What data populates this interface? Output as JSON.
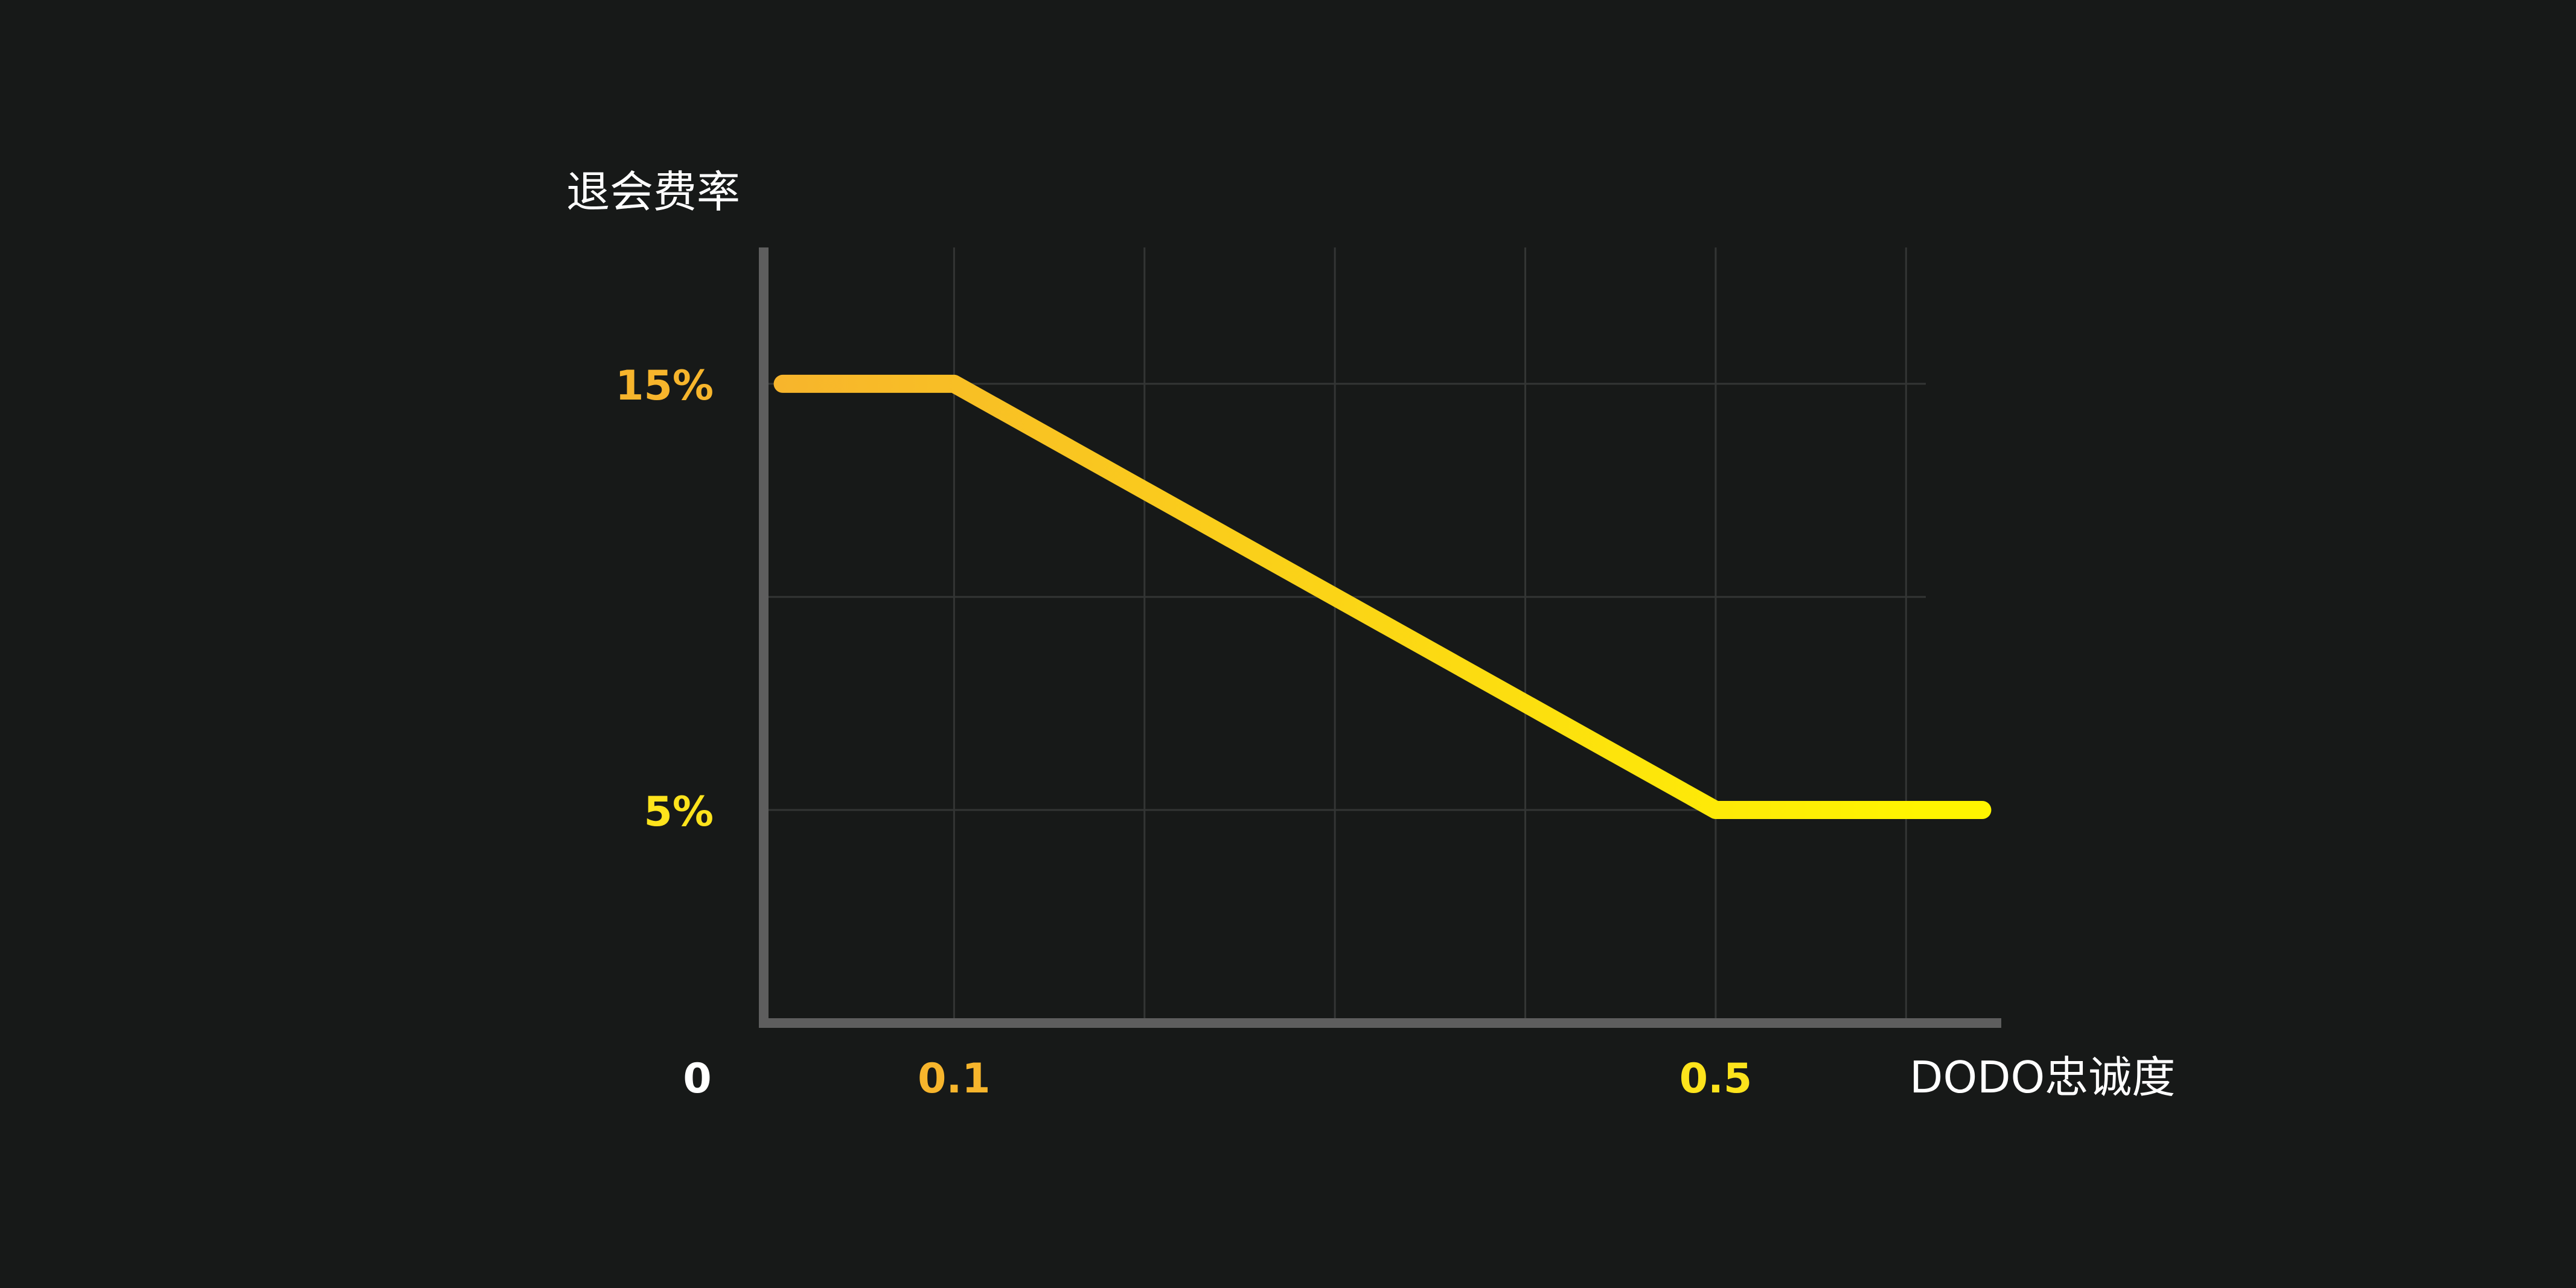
{
  "chart_data": {
    "type": "line",
    "ylabel": "退会费率",
    "xlabel": "DODO忠诚度",
    "origin_label": "0",
    "x_ticks": [
      {
        "value": 0.1,
        "label": "0.1",
        "color": "#f7b52c"
      },
      {
        "value": 0.5,
        "label": "0.5",
        "color": "#fde31c"
      }
    ],
    "y_ticks": [
      {
        "value": 15,
        "label": "15%",
        "color": "#f7b52c"
      },
      {
        "value": 5,
        "label": "5%",
        "color": "#fde31c"
      }
    ],
    "xlim": [
      0,
      0.65
    ],
    "ylim": [
      0,
      18.2
    ],
    "grid": true,
    "series": [
      {
        "points": [
          [
            0.01,
            15
          ],
          [
            0.1,
            15
          ],
          [
            0.5,
            5
          ],
          [
            0.64,
            5
          ]
        ],
        "gradient": [
          "#f7b52c",
          "#fff500"
        ]
      }
    ],
    "colors": {
      "background": "#171918",
      "axis": "#5e5e5e",
      "grid": "#333534",
      "text": "#ffffff"
    }
  }
}
